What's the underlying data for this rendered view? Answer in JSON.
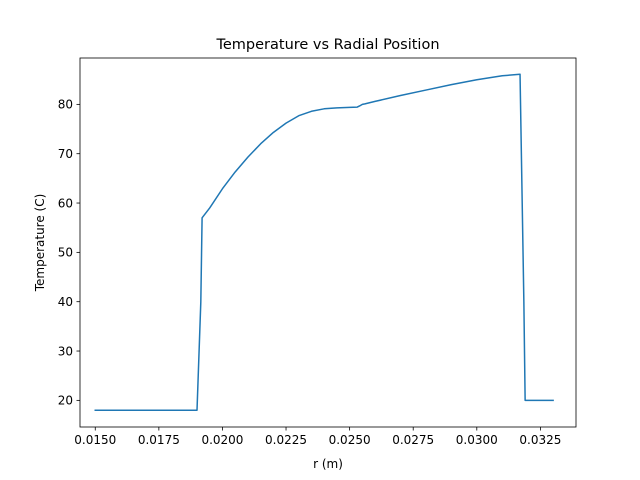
{
  "chart_data": {
    "type": "line",
    "title": "Temperature vs Radial Position",
    "xlabel": "r (m)",
    "ylabel": "Temperature (C)",
    "xlim": [
      0.0144,
      0.0339
    ],
    "ylim": [
      14.6,
      89.4
    ],
    "xticks": [
      0.015,
      0.0175,
      0.02,
      0.0225,
      0.025,
      0.0275,
      0.03,
      0.0325
    ],
    "xtick_labels": [
      "0.0150",
      "0.0175",
      "0.0200",
      "0.0225",
      "0.0250",
      "0.0275",
      "0.0300",
      "0.0325"
    ],
    "yticks": [
      20,
      30,
      40,
      50,
      60,
      70,
      80
    ],
    "ytick_labels": [
      "20",
      "30",
      "40",
      "50",
      "60",
      "70",
      "80"
    ],
    "grid": false,
    "series": [
      {
        "color": "#1f77b4",
        "x": [
          0.015,
          0.016,
          0.017,
          0.018,
          0.019,
          0.01915,
          0.0192,
          0.0195,
          0.02,
          0.0205,
          0.021,
          0.0215,
          0.022,
          0.0225,
          0.023,
          0.0235,
          0.024,
          0.0245,
          0.025,
          0.0253,
          0.0254,
          0.0255,
          0.0256,
          0.026,
          0.027,
          0.028,
          0.029,
          0.03,
          0.031,
          0.0317,
          0.03185,
          0.0319,
          0.0325,
          0.033
        ],
        "y": [
          18,
          18,
          18,
          18,
          18,
          40,
          57,
          59,
          62.9,
          66.3,
          69.3,
          72.0,
          74.3,
          76.2,
          77.7,
          78.6,
          79.1,
          79.3,
          79.4,
          79.45,
          79.7,
          80.0,
          80.1,
          80.6,
          81.8,
          82.9,
          84.0,
          85.0,
          85.8,
          86.1,
          40,
          20,
          20,
          20
        ]
      }
    ]
  }
}
